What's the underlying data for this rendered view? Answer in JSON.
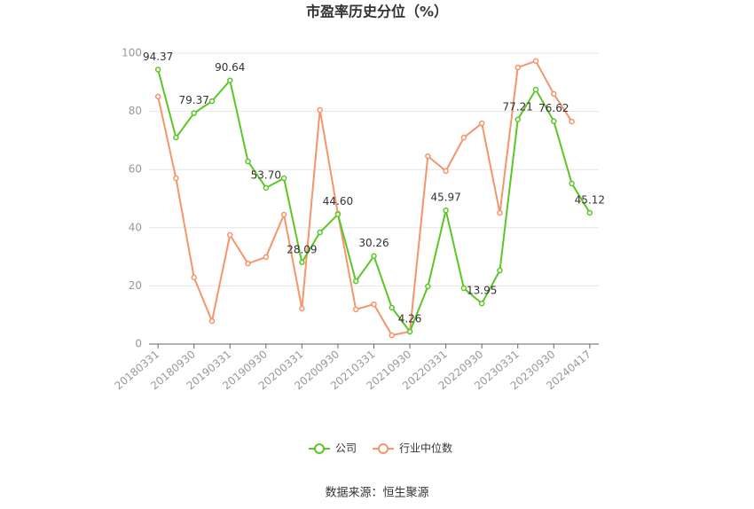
{
  "chart_data": {
    "type": "line",
    "title": "市盈率历史分位（%）",
    "categories": [
      "20180331",
      null,
      "20180930",
      null,
      "20190331",
      null,
      "20190930",
      null,
      "20200331",
      null,
      "20200930",
      null,
      "20210331",
      null,
      "20210930",
      null,
      "20220331",
      null,
      "20220930",
      null,
      "20230331",
      null,
      "20230930",
      null,
      "20240417"
    ],
    "series": [
      {
        "name": "公司",
        "color": "#5cc627",
        "values": [
          94.37,
          71.0,
          79.37,
          83.5,
          90.64,
          62.8,
          53.7,
          57.0,
          28.09,
          38.4,
          44.6,
          21.6,
          30.26,
          12.5,
          4.26,
          19.8,
          45.97,
          19.2,
          13.95,
          25.3,
          77.21,
          87.5,
          76.62,
          55.2,
          45.12
        ],
        "value_labels": [
          "94.37",
          null,
          "79.37",
          null,
          "90.64",
          null,
          "53.70",
          null,
          "28.09",
          null,
          "44.60",
          null,
          "30.26",
          null,
          "4.26",
          null,
          "45.97",
          null,
          "13.95",
          null,
          "77.21",
          null,
          "76.62",
          null,
          "45.12"
        ]
      },
      {
        "name": "行业中位数",
        "color": "#f4956b",
        "values": [
          85.1,
          57.0,
          22.9,
          7.9,
          37.5,
          27.7,
          29.9,
          44.5,
          12.2,
          80.5,
          44.8,
          11.9,
          13.7,
          3.0,
          4.3,
          64.6,
          59.5,
          71.0,
          75.9,
          45.1,
          95.1,
          97.3,
          86.0,
          76.5,
          null
        ]
      }
    ],
    "ylim": [
      0,
      100
    ],
    "yticks": [
      0,
      20,
      40,
      60,
      80,
      100
    ],
    "grid": true,
    "source": "数据来源：恒生聚源"
  }
}
